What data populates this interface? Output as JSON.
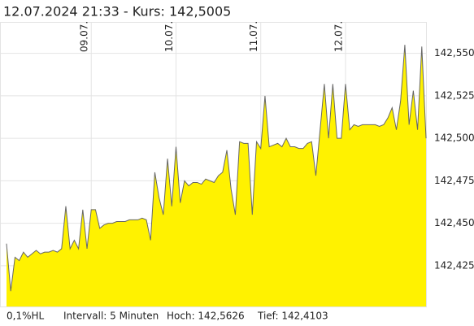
{
  "chart_data": {
    "type": "area",
    "title": "12.07.2024 21:33  -  Kurs: 142,5005",
    "footer": [
      "0,1%HL",
      "Intervall: 5 Minuten",
      "Hoch: 142,5626",
      "Tief: 142,4103"
    ],
    "categories": [
      null,
      null,
      null,
      null,
      null,
      null,
      null,
      null,
      null,
      null,
      null,
      null,
      null,
      null,
      null,
      null,
      null,
      null,
      null,
      null,
      "09.07.",
      null,
      null,
      null,
      null,
      null,
      null,
      null,
      null,
      null,
      null,
      null,
      null,
      null,
      null,
      null,
      null,
      null,
      null,
      null,
      "10.07.",
      null,
      null,
      null,
      null,
      null,
      null,
      null,
      null,
      null,
      null,
      null,
      null,
      null,
      null,
      null,
      null,
      null,
      null,
      null,
      "11.07.",
      null,
      null,
      null,
      null,
      null,
      null,
      null,
      null,
      null,
      null,
      null,
      null,
      null,
      null,
      null,
      null,
      null,
      null,
      null,
      "12.07.",
      null,
      null,
      null,
      null,
      null,
      null,
      null,
      null,
      null,
      null,
      null,
      null,
      null,
      null,
      null,
      null,
      null,
      null,
      null
    ],
    "series": [
      {
        "fill": "#fff200",
        "color": "#666666",
        "values": [
          142.438,
          142.41,
          142.43,
          142.428,
          142.433,
          142.43,
          142.432,
          142.434,
          142.432,
          142.433,
          142.433,
          142.434,
          142.433,
          142.435,
          142.46,
          142.435,
          142.44,
          142.435,
          142.458,
          142.435,
          142.458,
          142.458,
          142.447,
          142.449,
          142.45,
          142.45,
          142.451,
          142.451,
          142.451,
          142.452,
          142.452,
          142.452,
          142.453,
          142.452,
          142.44,
          142.48,
          142.465,
          142.455,
          142.488,
          142.46,
          142.495,
          142.462,
          142.475,
          142.472,
          142.474,
          142.474,
          142.473,
          142.476,
          142.475,
          142.474,
          142.478,
          142.48,
          142.493,
          142.47,
          142.455,
          142.498,
          142.497,
          142.497,
          142.455,
          142.498,
          142.494,
          142.525,
          142.495,
          142.496,
          142.497,
          142.495,
          142.5,
          142.495,
          142.495,
          142.494,
          142.494,
          142.497,
          142.498,
          142.478,
          142.505,
          142.532,
          142.5,
          142.532,
          142.5,
          142.5,
          142.532,
          142.505,
          142.508,
          142.507,
          142.508,
          142.508,
          142.508,
          142.508,
          142.507,
          142.508,
          142.512,
          142.518,
          142.505,
          142.522,
          142.555,
          142.508,
          142.528,
          142.505,
          142.554,
          142.5
        ]
      }
    ],
    "ylim": [
      142.401,
      142.568
    ],
    "yticks": [
      {
        "value": 142.425,
        "label": "142,425"
      },
      {
        "value": 142.45,
        "label": "142,450"
      },
      {
        "value": 142.475,
        "label": "142,475"
      },
      {
        "value": 142.5,
        "label": "142,500"
      },
      {
        "value": 142.525,
        "label": "142,525"
      },
      {
        "value": 142.55,
        "label": "142,550"
      }
    ],
    "grid": true
  }
}
